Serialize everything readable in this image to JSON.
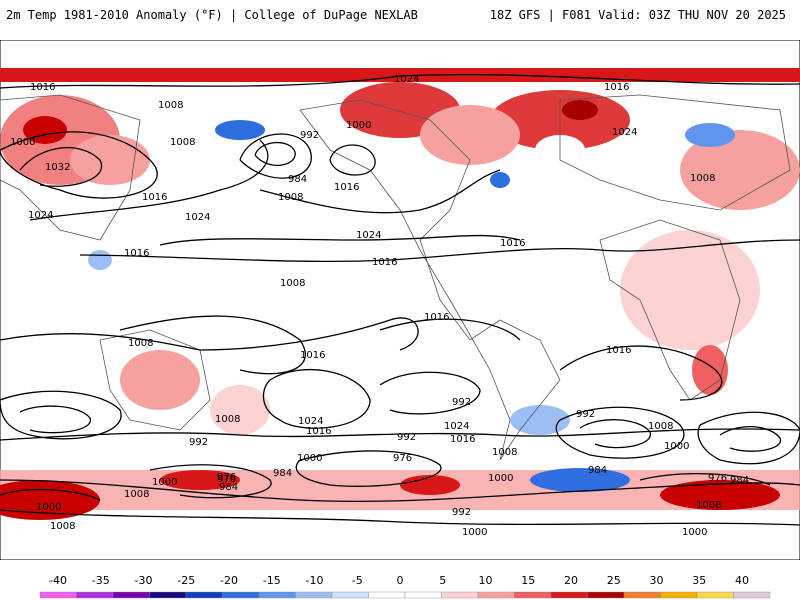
{
  "header": {
    "left_title": "2m Temp 1981-2010 Anomaly (°F) | College of DuPage NEXLAB",
    "right_title": "18Z GFS | F081 Valid: 03Z THU NOV 20 2025"
  },
  "contour_labels": [
    "1016",
    "1008",
    "1000",
    "1032",
    "992",
    "984",
    "1024",
    "1016",
    "1024",
    "1008",
    "1000",
    "1016",
    "1024",
    "1016",
    "1008",
    "1016",
    "1024",
    "1008",
    "1016",
    "1008",
    "1016",
    "1024",
    "1016",
    "992",
    "976",
    "984",
    "1000",
    "1008",
    "984",
    "976",
    "992",
    "1000",
    "1008",
    "1024",
    "1016",
    "1008",
    "976",
    "984",
    "992",
    "1008",
    "1000",
    "976",
    "984",
    "992",
    "1000",
    "1008",
    "1016",
    "1000",
    "1000",
    "1008",
    "1016",
    "1024",
    "1016",
    "1008",
    "992",
    "1000"
  ],
  "colorbar": {
    "ticks": [
      "-40",
      "-35",
      "-30",
      "-25",
      "-20",
      "-15",
      "-10",
      "-5",
      "0",
      "5",
      "10",
      "15",
      "20",
      "25",
      "30",
      "35",
      "40"
    ],
    "colors": [
      "#f060f0",
      "#b030e0",
      "#7a00b0",
      "#1a0a80",
      "#1040c0",
      "#2f6ee0",
      "#5f95ee",
      "#9bbff5",
      "#cfe2fb",
      "#ffffff",
      "#ffffff",
      "#fcd2d2",
      "#f7a0a0",
      "#f06060",
      "#d81818",
      "#a80000",
      "#f08030",
      "#f8b000",
      "#ffd84a",
      "#e0c8e0"
    ]
  }
}
